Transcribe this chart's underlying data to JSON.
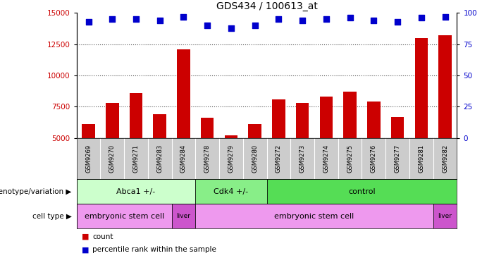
{
  "title": "GDS434 / 100613_at",
  "samples": [
    "GSM9269",
    "GSM9270",
    "GSM9271",
    "GSM9283",
    "GSM9284",
    "GSM9278",
    "GSM9279",
    "GSM9280",
    "GSM9272",
    "GSM9273",
    "GSM9274",
    "GSM9275",
    "GSM9276",
    "GSM9277",
    "GSM9281",
    "GSM9282"
  ],
  "counts": [
    6100,
    7800,
    8600,
    6900,
    12100,
    6600,
    5200,
    6100,
    8100,
    7800,
    8300,
    8700,
    7900,
    6700,
    13000,
    13200
  ],
  "percentile_ranks": [
    93,
    95,
    95,
    94,
    97,
    90,
    88,
    90,
    95,
    94,
    95,
    96,
    94,
    93,
    96,
    97
  ],
  "left_ylim": [
    5000,
    15000
  ],
  "right_ylim": [
    0,
    100
  ],
  "left_yticks": [
    5000,
    7500,
    10000,
    12500,
    15000
  ],
  "right_yticks": [
    0,
    25,
    50,
    75,
    100
  ],
  "bar_color": "#cc0000",
  "dot_color": "#0000cc",
  "dot_size": 30,
  "genotype_groups": [
    {
      "label": "Abca1 +/-",
      "start": 0,
      "end": 5,
      "color": "#ccffcc"
    },
    {
      "label": "Cdk4 +/-",
      "start": 5,
      "end": 8,
      "color": "#88ee88"
    },
    {
      "label": "control",
      "start": 8,
      "end": 16,
      "color": "#55dd55"
    }
  ],
  "cell_type_groups": [
    {
      "label": "embryonic stem cell",
      "start": 0,
      "end": 4,
      "color": "#ee99ee"
    },
    {
      "label": "liver",
      "start": 4,
      "end": 5,
      "color": "#cc55cc"
    },
    {
      "label": "embryonic stem cell",
      "start": 5,
      "end": 15,
      "color": "#ee99ee"
    },
    {
      "label": "liver",
      "start": 15,
      "end": 16,
      "color": "#cc55cc"
    }
  ],
  "tick_bg_color": "#cccccc",
  "bar_color_legend": "#cc0000",
  "dot_color_legend": "#0000cc",
  "tick_label_color_left": "#cc0000",
  "tick_label_color_right": "#0000cc",
  "grid_color": "#555555",
  "bar_width": 0.55,
  "geno_label": "genotype/variation",
  "cell_label": "cell type",
  "legend_count": "count",
  "legend_pct": "percentile rank within the sample"
}
